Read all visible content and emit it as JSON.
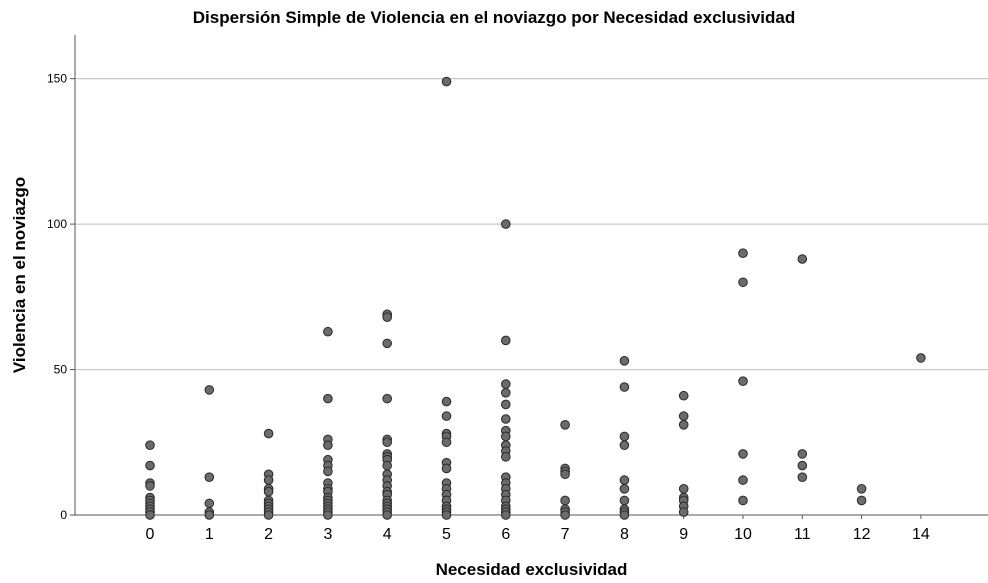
{
  "chart_data": {
    "type": "scatter",
    "title": "Dispersión Simple de Violencia en el noviazgo por Necesidad exclusividad",
    "xlabel": "Necesidad exclusividad",
    "ylabel": "Violencia en el noviazgo",
    "x_ticks": [
      0,
      1,
      2,
      3,
      4,
      5,
      6,
      7,
      8,
      9,
      10,
      11,
      12,
      14
    ],
    "y_ticks": [
      0,
      50,
      100,
      150
    ],
    "ylim": [
      0,
      165
    ],
    "grid": "horizontal",
    "legend": "none",
    "colors": {
      "point_fill": "#6b6b6b",
      "point_stroke": "#2a2a2a",
      "grid": "#c8c8c8",
      "axis": "#555555"
    },
    "points": [
      {
        "x": 0,
        "y": 24
      },
      {
        "x": 0,
        "y": 17
      },
      {
        "x": 0,
        "y": 11
      },
      {
        "x": 0,
        "y": 10
      },
      {
        "x": 0,
        "y": 6
      },
      {
        "x": 0,
        "y": 5
      },
      {
        "x": 0,
        "y": 4
      },
      {
        "x": 0,
        "y": 3
      },
      {
        "x": 0,
        "y": 2
      },
      {
        "x": 0,
        "y": 1
      },
      {
        "x": 0,
        "y": 0
      },
      {
        "x": 1,
        "y": 43
      },
      {
        "x": 1,
        "y": 13
      },
      {
        "x": 1,
        "y": 4
      },
      {
        "x": 1,
        "y": 1
      },
      {
        "x": 1,
        "y": 0
      },
      {
        "x": 2,
        "y": 28
      },
      {
        "x": 2,
        "y": 14
      },
      {
        "x": 2,
        "y": 12
      },
      {
        "x": 2,
        "y": 9
      },
      {
        "x": 2,
        "y": 8
      },
      {
        "x": 2,
        "y": 5
      },
      {
        "x": 2,
        "y": 4
      },
      {
        "x": 2,
        "y": 3
      },
      {
        "x": 2,
        "y": 2
      },
      {
        "x": 2,
        "y": 1
      },
      {
        "x": 2,
        "y": 0
      },
      {
        "x": 3,
        "y": 63
      },
      {
        "x": 3,
        "y": 40
      },
      {
        "x": 3,
        "y": 26
      },
      {
        "x": 3,
        "y": 24
      },
      {
        "x": 3,
        "y": 19
      },
      {
        "x": 3,
        "y": 17
      },
      {
        "x": 3,
        "y": 15
      },
      {
        "x": 3,
        "y": 11
      },
      {
        "x": 3,
        "y": 9
      },
      {
        "x": 3,
        "y": 8
      },
      {
        "x": 3,
        "y": 6
      },
      {
        "x": 3,
        "y": 5
      },
      {
        "x": 3,
        "y": 4
      },
      {
        "x": 3,
        "y": 3
      },
      {
        "x": 3,
        "y": 2
      },
      {
        "x": 3,
        "y": 1
      },
      {
        "x": 3,
        "y": 0
      },
      {
        "x": 4,
        "y": 69
      },
      {
        "x": 4,
        "y": 68
      },
      {
        "x": 4,
        "y": 59
      },
      {
        "x": 4,
        "y": 40
      },
      {
        "x": 4,
        "y": 26
      },
      {
        "x": 4,
        "y": 25
      },
      {
        "x": 4,
        "y": 21
      },
      {
        "x": 4,
        "y": 20
      },
      {
        "x": 4,
        "y": 19
      },
      {
        "x": 4,
        "y": 17
      },
      {
        "x": 4,
        "y": 14
      },
      {
        "x": 4,
        "y": 12
      },
      {
        "x": 4,
        "y": 10
      },
      {
        "x": 4,
        "y": 8
      },
      {
        "x": 4,
        "y": 7
      },
      {
        "x": 4,
        "y": 5
      },
      {
        "x": 4,
        "y": 4
      },
      {
        "x": 4,
        "y": 3
      },
      {
        "x": 4,
        "y": 2
      },
      {
        "x": 4,
        "y": 1
      },
      {
        "x": 4,
        "y": 0
      },
      {
        "x": 5,
        "y": 149
      },
      {
        "x": 5,
        "y": 39
      },
      {
        "x": 5,
        "y": 34
      },
      {
        "x": 5,
        "y": 28
      },
      {
        "x": 5,
        "y": 27
      },
      {
        "x": 5,
        "y": 25
      },
      {
        "x": 5,
        "y": 18
      },
      {
        "x": 5,
        "y": 16
      },
      {
        "x": 5,
        "y": 11
      },
      {
        "x": 5,
        "y": 9
      },
      {
        "x": 5,
        "y": 7
      },
      {
        "x": 5,
        "y": 5
      },
      {
        "x": 5,
        "y": 3
      },
      {
        "x": 5,
        "y": 2
      },
      {
        "x": 5,
        "y": 1
      },
      {
        "x": 5,
        "y": 0
      },
      {
        "x": 6,
        "y": 100
      },
      {
        "x": 6,
        "y": 60
      },
      {
        "x": 6,
        "y": 45
      },
      {
        "x": 6,
        "y": 42
      },
      {
        "x": 6,
        "y": 38
      },
      {
        "x": 6,
        "y": 33
      },
      {
        "x": 6,
        "y": 29
      },
      {
        "x": 6,
        "y": 27
      },
      {
        "x": 6,
        "y": 24
      },
      {
        "x": 6,
        "y": 22
      },
      {
        "x": 6,
        "y": 20
      },
      {
        "x": 6,
        "y": 13
      },
      {
        "x": 6,
        "y": 11
      },
      {
        "x": 6,
        "y": 9
      },
      {
        "x": 6,
        "y": 7
      },
      {
        "x": 6,
        "y": 5
      },
      {
        "x": 6,
        "y": 3
      },
      {
        "x": 6,
        "y": 2
      },
      {
        "x": 6,
        "y": 1
      },
      {
        "x": 6,
        "y": 0
      },
      {
        "x": 7,
        "y": 31
      },
      {
        "x": 7,
        "y": 16
      },
      {
        "x": 7,
        "y": 15
      },
      {
        "x": 7,
        "y": 14
      },
      {
        "x": 7,
        "y": 5
      },
      {
        "x": 7,
        "y": 2
      },
      {
        "x": 7,
        "y": 1
      },
      {
        "x": 7,
        "y": 0
      },
      {
        "x": 8,
        "y": 53
      },
      {
        "x": 8,
        "y": 44
      },
      {
        "x": 8,
        "y": 27
      },
      {
        "x": 8,
        "y": 24
      },
      {
        "x": 8,
        "y": 12
      },
      {
        "x": 8,
        "y": 9
      },
      {
        "x": 8,
        "y": 5
      },
      {
        "x": 8,
        "y": 2
      },
      {
        "x": 8,
        "y": 1
      },
      {
        "x": 8,
        "y": 0
      },
      {
        "x": 9,
        "y": 41
      },
      {
        "x": 9,
        "y": 34
      },
      {
        "x": 9,
        "y": 31
      },
      {
        "x": 9,
        "y": 9
      },
      {
        "x": 9,
        "y": 6
      },
      {
        "x": 9,
        "y": 5
      },
      {
        "x": 9,
        "y": 3
      },
      {
        "x": 9,
        "y": 1
      },
      {
        "x": 10,
        "y": 90
      },
      {
        "x": 10,
        "y": 80
      },
      {
        "x": 10,
        "y": 46
      },
      {
        "x": 10,
        "y": 21
      },
      {
        "x": 10,
        "y": 12
      },
      {
        "x": 10,
        "y": 5
      },
      {
        "x": 11,
        "y": 88
      },
      {
        "x": 11,
        "y": 21
      },
      {
        "x": 11,
        "y": 17
      },
      {
        "x": 11,
        "y": 13
      },
      {
        "x": 12,
        "y": 9
      },
      {
        "x": 12,
        "y": 5
      },
      {
        "x": 14,
        "y": 54
      }
    ]
  }
}
